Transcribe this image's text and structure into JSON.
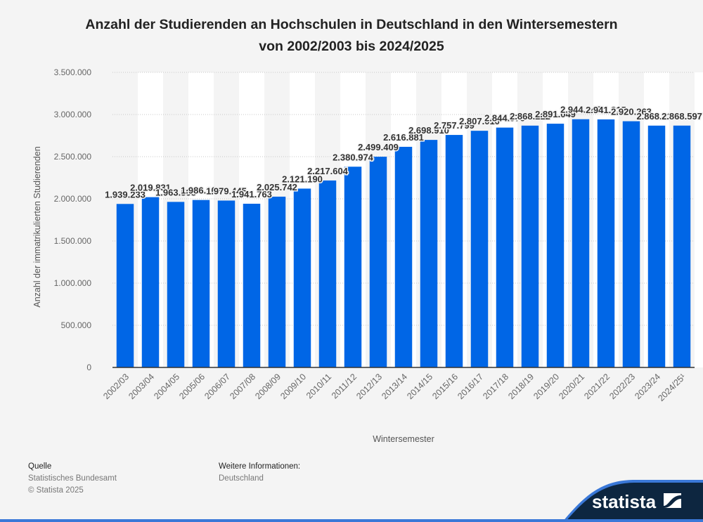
{
  "title_line1": "Anzahl der Studierenden an Hochschulen in Deutschland in den Wintersemestern",
  "title_line2": "von 2002/2003 bis 2024/2025",
  "footer": {
    "source_heading": "Quelle",
    "source_value": "Statistisches Bundesamt",
    "copyright": "© Statista 2025",
    "info_heading": "Weitere Informationen:",
    "info_value": "Deutschland"
  },
  "brand": {
    "logo_text": "statista"
  },
  "colors": {
    "bar": "#0066e6",
    "band": "#ffffff",
    "footer_dark": "#0d2640",
    "footer_accent": "#3a78d8"
  },
  "chart_data": {
    "type": "bar",
    "title": "Anzahl der Studierenden an Hochschulen in Deutschland in den Wintersemestern von 2002/2003 bis 2024/2025",
    "xlabel": "Wintersemester",
    "ylabel": "Anzahl der immatrikulierten Studierenden",
    "ylim": [
      0,
      3500000
    ],
    "yticks": [
      0,
      500000,
      1000000,
      1500000,
      2000000,
      2500000,
      3000000,
      3500000
    ],
    "ytick_labels": [
      "0",
      "500.000",
      "1.000.000",
      "1.500.000",
      "2.000.000",
      "2.500.000",
      "3.000.000",
      "3.500.000"
    ],
    "grid": true,
    "categories": [
      "2002/03",
      "2003/04",
      "2004/05",
      "2005/06",
      "2006/07",
      "2007/08",
      "2008/09",
      "2009/10",
      "2010/11",
      "2011/12",
      "2012/13",
      "2013/14",
      "2014/15",
      "2015/16",
      "2016/17",
      "2017/18",
      "2018/19",
      "2019/20",
      "2020/21",
      "2021/22",
      "2022/23",
      "2023/24",
      "2024/25¹"
    ],
    "values": [
      1939233,
      2019831,
      1963598,
      1986106,
      1979445,
      1941763,
      2025742,
      2121190,
      2217604,
      2380974,
      2499409,
      2616881,
      2698910,
      2757799,
      2807010,
      2844978,
      2868222,
      2891049,
      2944145,
      2941915,
      2920263,
      2868311,
      2868597
    ],
    "value_labels": [
      "1.939.233",
      "2.019.831",
      "1.963.598",
      "1.986.106",
      "1.979.445",
      "1.941.763",
      "2.025.742",
      "2.121.190",
      "2.217.604",
      "2.380.974",
      "2.499.409",
      "2.616.881",
      "2.698.910",
      "2.757.799",
      "2.807.010",
      "2.844.978",
      "2.868.222",
      "2.891.049",
      "2.944.145",
      "2.941.915",
      "2.920.263",
      "2.868.311",
      "2.868.597"
    ]
  }
}
